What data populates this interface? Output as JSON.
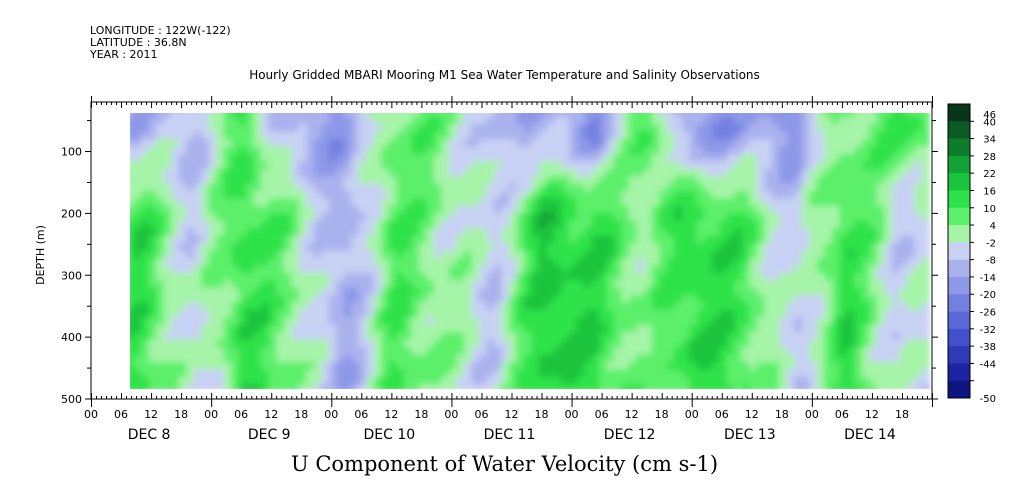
{
  "header": {
    "longitude": "LONGITUDE : 122W(-122)",
    "latitude": "LATITUDE : 36.8N",
    "year": "YEAR : 2011"
  },
  "chart_data": {
    "type": "heatmap",
    "title": "Hourly Gridded MBARI Mooring M1 Sea Water Temperature and Salinity Observations",
    "bottom_title": "U Component of Water Velocity (cm s-1)",
    "ylabel": "DEPTH (m)",
    "ylim": [
      500,
      20
    ],
    "y_ticks": [
      100,
      200,
      300,
      400,
      500
    ],
    "x_hour_ticks": [
      "00",
      "06",
      "12",
      "18",
      "00",
      "06",
      "12",
      "18",
      "00",
      "06",
      "12",
      "18",
      "00",
      "06",
      "12",
      "18",
      "00",
      "06",
      "12",
      "18",
      "00",
      "06",
      "12",
      "18",
      "00",
      "06",
      "12",
      "18"
    ],
    "x_day_labels": [
      "DEC 8",
      "DEC 9",
      "DEC 10",
      "DEC 11",
      "DEC 12",
      "DEC 13",
      "DEC 14"
    ],
    "data_range_hours": [
      7,
      167
    ],
    "data_depth_range": [
      20,
      485
    ],
    "colorbar": {
      "levels": [
        46,
        40,
        34,
        28,
        22,
        16,
        10,
        4,
        -2,
        -8,
        -14,
        -20,
        -26,
        -32,
        -38,
        -44,
        -50
      ],
      "colors": [
        "#08361a",
        "#0a5a22",
        "#0d7d2c",
        "#12a236",
        "#1cc43e",
        "#2ee24a",
        "#5cf06a",
        "#a6f4a8",
        "#c8d2f4",
        "#aab2ee",
        "#8e98e8",
        "#7280e0",
        "#5a68d8",
        "#4250cc",
        "#2e3ab8",
        "#1c24a0",
        "#0e1480"
      ]
    },
    "u_velocity_pattern": [
      {
        "hour": 10,
        "near_surface": -10,
        "deep": 12
      },
      {
        "hour": 20,
        "near_surface": -8,
        "deep": -6
      },
      {
        "hour": 30,
        "near_surface": 10,
        "deep": 14
      },
      {
        "hour": 40,
        "near_surface": -14,
        "deep": 4
      },
      {
        "hour": 50,
        "near_surface": -16,
        "deep": -14
      },
      {
        "hour": 60,
        "near_surface": 8,
        "deep": 10
      },
      {
        "hour": 70,
        "near_surface": 4,
        "deep": 2
      },
      {
        "hour": 80,
        "near_surface": -10,
        "deep": -6
      },
      {
        "hour": 90,
        "near_surface": -12,
        "deep": 18
      },
      {
        "hour": 100,
        "near_surface": -18,
        "deep": 14
      },
      {
        "hour": 110,
        "near_surface": 12,
        "deep": 2
      },
      {
        "hour": 120,
        "near_surface": -20,
        "deep": 16
      },
      {
        "hour": 130,
        "near_surface": -14,
        "deep": 10
      },
      {
        "hour": 140,
        "near_surface": -16,
        "deep": -8
      },
      {
        "hour": 150,
        "near_surface": 6,
        "deep": 14
      },
      {
        "hour": 160,
        "near_surface": 10,
        "deep": -4
      }
    ]
  }
}
